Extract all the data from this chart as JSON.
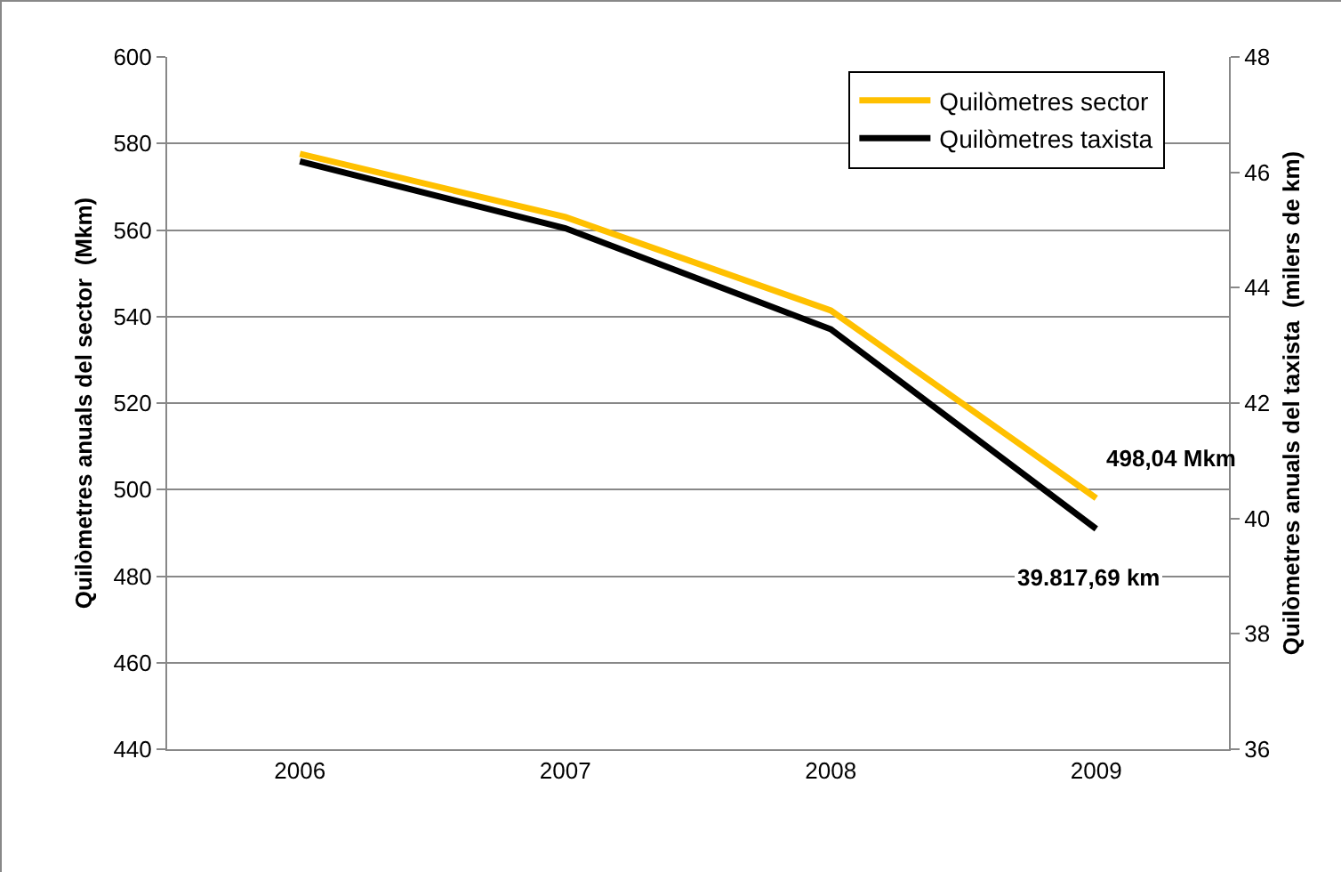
{
  "chart_data": {
    "type": "line",
    "categories": [
      "2006",
      "2007",
      "2008",
      "2009"
    ],
    "ylabel": "Quilòmetres anuals del sector  (Mkm)",
    "y2label": "Quilòmetres anuals del taxista  (milers de km)",
    "series": [
      {
        "name": "Quilòmetres sector",
        "color": "#ffc000",
        "values": [
          577.6,
          563,
          541.4,
          498.04
        ]
      },
      {
        "name": "Quilòmetres taxista",
        "color": "#000000",
        "axis": "y2",
        "values": [
          46.19,
          45.03,
          43.28,
          39.82
        ]
      }
    ],
    "annotations": [
      {
        "text": "498,04 Mkm",
        "x": "2009",
        "y": 498.04
      },
      {
        "text": "39.817,69 km",
        "x": "2009",
        "y": 491
      }
    ],
    "ylim": [
      440,
      600
    ],
    "yticks": [
      440,
      460,
      480,
      500,
      520,
      540,
      560,
      580,
      600
    ],
    "y2lim": [
      36,
      48
    ],
    "y2ticks": [
      36,
      38,
      40,
      42,
      44,
      46,
      48
    ],
    "grid": "y",
    "legend": "top right",
    "marker": "none",
    "line_style": "solid"
  }
}
